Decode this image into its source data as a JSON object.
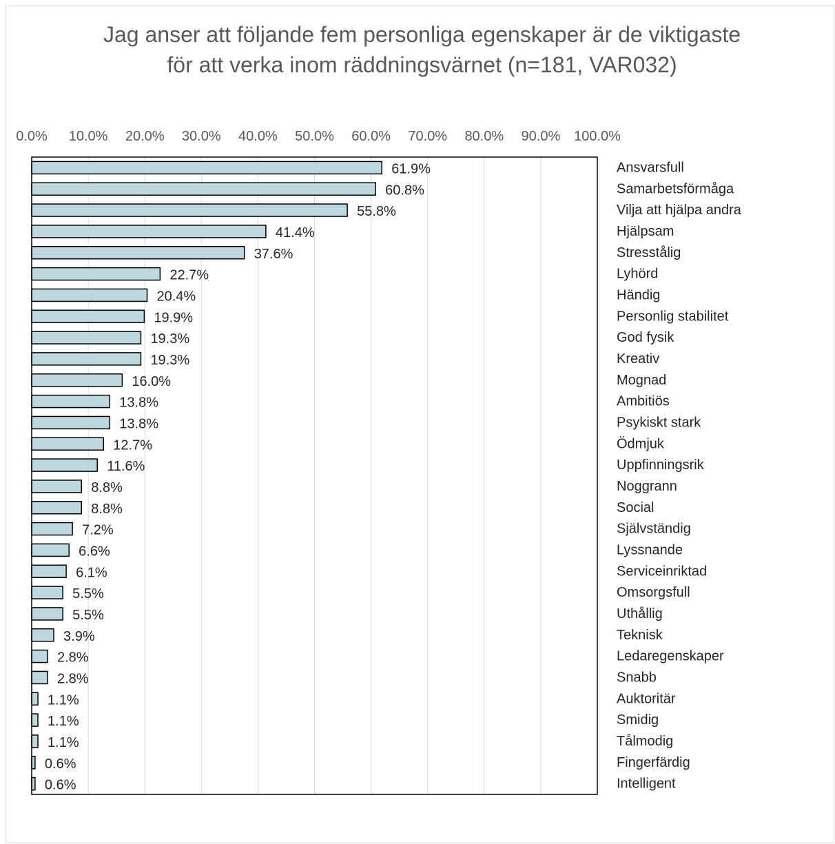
{
  "chart_data": {
    "type": "bar",
    "orientation": "horizontal",
    "title_lines": [
      "Jag anser att följande fem personliga egenskaper är de viktigaste",
      "för att verka inom räddningsvärnet (n=181, VAR032)"
    ],
    "xlabel": "",
    "ylabel": "",
    "xlim": [
      0,
      100
    ],
    "x_ticks": [
      "0.0%",
      "10.0%",
      "20.0%",
      "30.0%",
      "40.0%",
      "50.0%",
      "60.0%",
      "70.0%",
      "80.0%",
      "90.0%",
      "100.0%"
    ],
    "x_axis_position": "top",
    "category_labels_position": "right",
    "grid": true,
    "legend": "none",
    "bar_color": "#bdd7de",
    "bar_edge_color": "#000000",
    "categories": [
      "Ansvarsfull",
      "Samarbetsförmåga",
      "Vilja att hjälpa andra",
      "Hjälpsam",
      "Stresstålig",
      "Lyhörd",
      "Händig",
      "Personlig stabilitet",
      "God fysik",
      "Kreativ",
      "Mognad",
      "Ambitiös",
      "Psykiskt stark",
      "Ödmjuk",
      "Uppfinningsrik",
      "Noggrann",
      "Social",
      "Självständig",
      "Lyssnande",
      "Serviceinriktad",
      "Omsorgsfull",
      "Uthållig",
      "Teknisk",
      "Ledaregenskaper",
      "Snabb",
      "Auktoritär",
      "Smidig",
      "Tålmodig",
      "Fingerfärdig",
      "Intelligent"
    ],
    "values": [
      61.9,
      60.8,
      55.8,
      41.4,
      37.6,
      22.7,
      20.4,
      19.9,
      19.3,
      19.3,
      16.0,
      13.8,
      13.8,
      12.7,
      11.6,
      8.8,
      8.8,
      7.2,
      6.6,
      6.1,
      5.5,
      5.5,
      3.9,
      2.8,
      2.8,
      1.1,
      1.1,
      1.1,
      0.6,
      0.6
    ],
    "value_labels": [
      "61.9%",
      "60.8%",
      "55.8%",
      "41.4%",
      "37.6%",
      "22.7%",
      "20.4%",
      "19.9%",
      "19.3%",
      "19.3%",
      "16.0%",
      "13.8%",
      "13.8%",
      "12.7%",
      "11.6%",
      "8.8%",
      "8.8%",
      "7.2%",
      "6.6%",
      "6.1%",
      "5.5%",
      "5.5%",
      "3.9%",
      "2.8%",
      "2.8%",
      "1.1%",
      "1.1%",
      "1.1%",
      "0.6%",
      "0.6%"
    ]
  }
}
